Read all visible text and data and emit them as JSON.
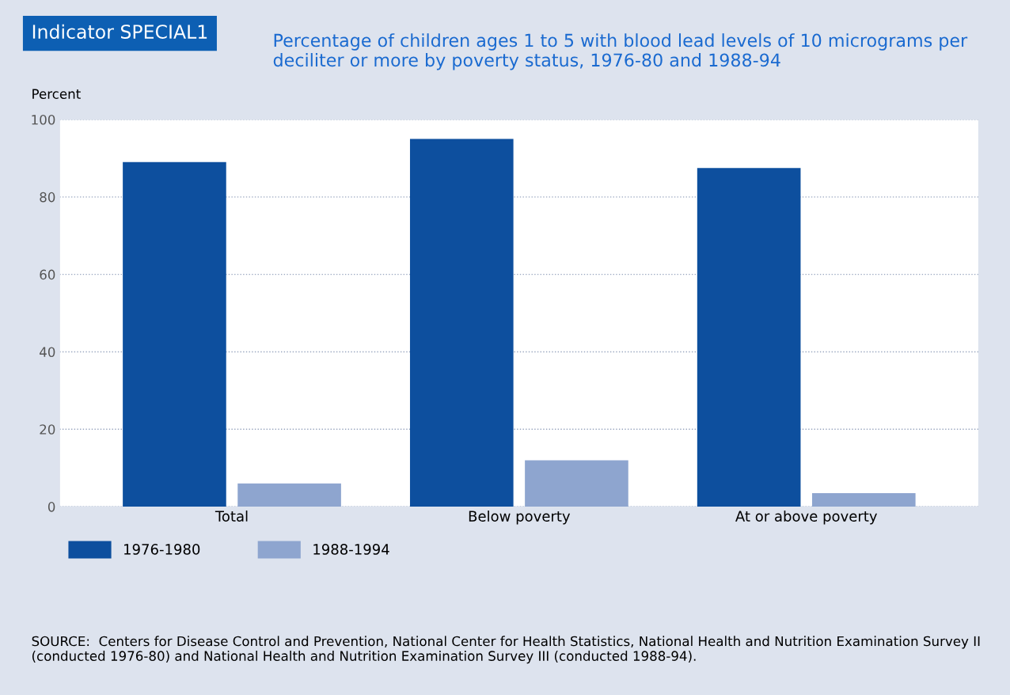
{
  "chart_data": {
    "type": "bar",
    "title": "Indicator SPECIAL1",
    "subtitle": "Percentage of children ages 1 to 5 with blood lead levels of 10 micrograms per deciliter or more by poverty status, 1976-80 and 1988-94",
    "ylabel": "Percent",
    "categories": [
      "Total",
      "Below poverty",
      "At or above poverty"
    ],
    "series": [
      {
        "name": "1976-1980",
        "color": "#0d4f9e",
        "values": [
          89,
          95,
          87.5
        ]
      },
      {
        "name": "1988-1994",
        "color": "#8ea5cf",
        "values": [
          6,
          12,
          3.5
        ]
      }
    ],
    "ylim": [
      0,
      100
    ],
    "yticks": [
      0,
      20,
      40,
      60,
      80,
      100
    ],
    "grid": "y",
    "legend": "bottom left",
    "annotations": [
      "SOURCE:  Centers for Disease Control and Prevention, National Center for Health Statistics, National Health and Nutrition Examination Survey II (conducted 1976-80) and National Health and Nutrition Examination Survey III (conducted 1988-94)."
    ]
  }
}
